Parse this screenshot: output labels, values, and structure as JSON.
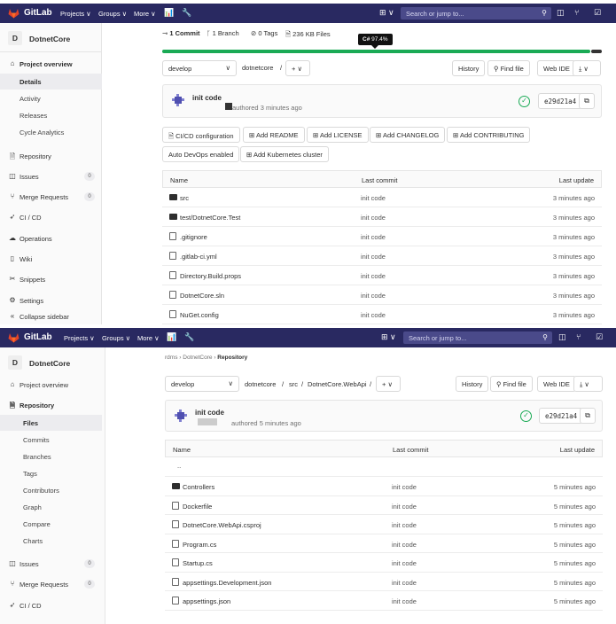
{
  "colors": {
    "topbar": "#292961",
    "lang_green": "#1aaa55",
    "lang_dark": "#333333",
    "logo_orange": "#e24329"
  },
  "topbar": {
    "brand": "GitLab",
    "projects": "Projects ∨",
    "groups": "Groups ∨",
    "more": "More ∨",
    "search_placeholder": "Search or jump to...",
    "icons": [
      "chart-icon",
      "wrench-icon",
      "plus-icon",
      "issues-icon",
      "merge-request-icon",
      "todo-icon",
      "search-icon"
    ]
  },
  "screen1": {
    "sidebar": {
      "avatar": "D",
      "title": "DotnetCore",
      "overview": "Project overview",
      "overview_items": [
        "Details",
        "Activity",
        "Releases",
        "Cycle Analytics"
      ],
      "items": [
        {
          "label": "Repository",
          "icon": "repository-icon"
        },
        {
          "label": "Issues",
          "icon": "issues-icon",
          "badge": "0"
        },
        {
          "label": "Merge Requests",
          "icon": "merge-request-icon",
          "badge": "0"
        },
        {
          "label": "CI / CD",
          "icon": "rocket-icon"
        },
        {
          "label": "Operations",
          "icon": "cloud-icon"
        },
        {
          "label": "Wiki",
          "icon": "book-icon"
        },
        {
          "label": "Snippets",
          "icon": "scissors-icon"
        },
        {
          "label": "Settings",
          "icon": "gear-icon"
        }
      ],
      "collapse": "Collapse sidebar"
    },
    "stats": {
      "commits": "1 Commit",
      "branches": "1 Branch",
      "tags": "0 Tags",
      "files": "236 KB Files"
    },
    "language_tooltip": {
      "lang": "C#",
      "pct": "97.4%"
    },
    "language_share": 0.974,
    "branch": "develop",
    "path_root": "dotnetcore",
    "path_sep": "/",
    "add_btn": "+ ∨",
    "history": "History",
    "find_file": "Find file",
    "web_ide": "Web IDE",
    "download": "⤓ ∨",
    "commit": {
      "title": "init code",
      "authored": "authored 3 minutes ago",
      "sha": "e29d21a4"
    },
    "quick_buttons": [
      "CI/CD configuration",
      "Add README",
      "Add LICENSE",
      "Add CHANGELOG",
      "Add CONTRIBUTING",
      "Auto DevOps enabled",
      "Add Kubernetes cluster"
    ],
    "table": {
      "headers": {
        "name": "Name",
        "commit": "Last commit",
        "update": "Last update"
      },
      "rows": [
        {
          "name": "src",
          "type": "folder",
          "commit": "init code",
          "update": "3 minutes ago"
        },
        {
          "name": "test/DotnetCore.Test",
          "type": "folder",
          "commit": "init code",
          "update": "3 minutes ago"
        },
        {
          "name": ".gitignore",
          "type": "file",
          "commit": "init code",
          "update": "3 minutes ago"
        },
        {
          "name": ".gitlab-ci.yml",
          "type": "file",
          "commit": "init code",
          "update": "3 minutes ago"
        },
        {
          "name": "Directory.Build.props",
          "type": "file",
          "commit": "init code",
          "update": "3 minutes ago"
        },
        {
          "name": "DotnetCore.sln",
          "type": "file",
          "commit": "init code",
          "update": "3 minutes ago"
        },
        {
          "name": "NuGet.config",
          "type": "file",
          "commit": "init code",
          "update": "3 minutes ago"
        }
      ]
    }
  },
  "screen2": {
    "sidebar": {
      "avatar": "D",
      "title": "DotnetCore",
      "overview": "Project overview",
      "repository": "Repository",
      "repo_items": [
        "Files",
        "Commits",
        "Branches",
        "Tags",
        "Contributors",
        "Graph",
        "Compare",
        "Charts"
      ],
      "items": [
        {
          "label": "Issues",
          "icon": "issues-icon",
          "badge": "0"
        },
        {
          "label": "Merge Requests",
          "icon": "merge-request-icon",
          "badge": "0"
        },
        {
          "label": "CI / CD",
          "icon": "rocket-icon"
        }
      ]
    },
    "breadcrumb": {
      "group": "rdms",
      "project": "DotnetCore",
      "current": "Repository"
    },
    "branch": "develop",
    "path": [
      "dotnetcore",
      "src",
      "DotnetCore.WebApi"
    ],
    "path_sep": "/",
    "add_btn": "+ ∨",
    "history": "History",
    "find_file": "Find file",
    "web_ide": "Web IDE",
    "download": "⤓ ∨",
    "commit": {
      "title": "init code",
      "authored": "authored 5 minutes ago",
      "sha": "e29d21a4"
    },
    "table": {
      "headers": {
        "name": "Name",
        "commit": "Last commit",
        "update": "Last update"
      },
      "parent": "..",
      "rows": [
        {
          "name": "Controllers",
          "type": "folder",
          "commit": "init code",
          "update": "5 minutes ago"
        },
        {
          "name": "Dockerfile",
          "type": "file",
          "commit": "init code",
          "update": "5 minutes ago"
        },
        {
          "name": "DotnetCore.WebApi.csproj",
          "type": "file",
          "commit": "init code",
          "update": "5 minutes ago"
        },
        {
          "name": "Program.cs",
          "type": "file",
          "commit": "init code",
          "update": "5 minutes ago"
        },
        {
          "name": "Startup.cs",
          "type": "file",
          "commit": "init code",
          "update": "5 minutes ago"
        },
        {
          "name": "appsettings.Development.json",
          "type": "file",
          "commit": "init code",
          "update": "5 minutes ago"
        },
        {
          "name": "appsettings.json",
          "type": "file",
          "commit": "init code",
          "update": "5 minutes ago"
        }
      ]
    }
  }
}
